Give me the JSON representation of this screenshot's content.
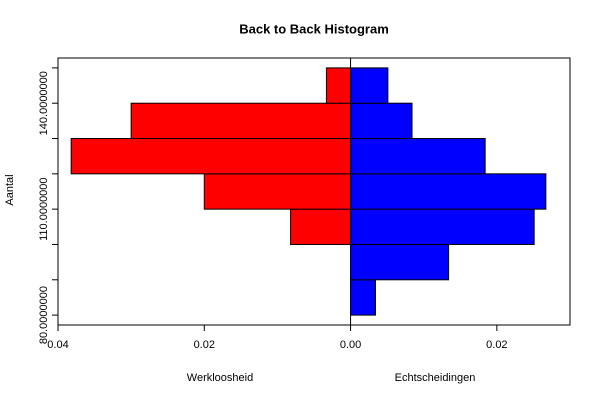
{
  "chart_data": {
    "type": "back-to-back-histogram",
    "title": "Back to Back Histogram",
    "y_label": "Aantal",
    "bins": [
      80,
      90,
      100,
      110,
      120,
      130,
      140,
      150
    ],
    "series": [
      {
        "name": "Werkloosheid",
        "color": "#ff0000",
        "values": [
          0,
          0,
          0.0082,
          0.02,
          0.0382,
          0.03,
          0.0033
        ]
      },
      {
        "name": "Echtscheidingen",
        "color": "#0000ff",
        "values": [
          0.0034,
          0.0134,
          0.0251,
          0.0267,
          0.0184,
          0.0084,
          0.0051
        ]
      }
    ],
    "xlim": [
      -0.04,
      0.03
    ],
    "xticks": [
      {
        "value": -0.04,
        "label": "0.04"
      },
      {
        "value": -0.02,
        "label": "0.02"
      },
      {
        "value": 0,
        "label": "0.00"
      },
      {
        "value": 0.02,
        "label": "0.02"
      }
    ],
    "ylim": [
      77.2,
      152.8
    ],
    "yticks": [
      {
        "value": 80,
        "label": "80.0000000"
      },
      90,
      100,
      {
        "value": 110,
        "label": "110.0000000"
      },
      120,
      130,
      {
        "value": 140,
        "label": "140.0000000"
      },
      150
    ]
  }
}
